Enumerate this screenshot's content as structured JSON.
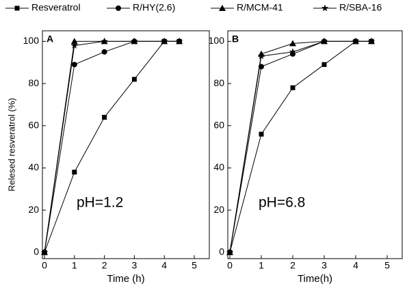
{
  "chart_data": [
    {
      "type": "line",
      "panel_label": "A",
      "annotation": "pH=1.2",
      "y_label": "Relesed resveratrol (%)",
      "x_label": "Time (h)",
      "x": [
        0,
        1,
        2,
        3,
        4,
        4.5
      ],
      "xlim": [
        0,
        5.5
      ],
      "xticks": [
        0,
        1,
        2,
        3,
        4,
        5
      ],
      "ylim": [
        -3,
        105
      ],
      "yticks": [
        0,
        20,
        40,
        60,
        80,
        100
      ],
      "series": [
        {
          "name": "Resveratrol",
          "color": "#000000",
          "marker": "square",
          "values": [
            0,
            38,
            64,
            82,
            100,
            100
          ]
        },
        {
          "name": "R/HY(2.6)",
          "color": "#000000",
          "marker": "circle",
          "values": [
            0,
            89,
            95,
            100,
            100,
            100
          ]
        },
        {
          "name": "R/MCM-41",
          "color": "#000000",
          "marker": "triangle",
          "values": [
            0,
            100,
            100,
            100,
            100,
            100
          ]
        },
        {
          "name": "R/SBA-16",
          "color": "#000000",
          "marker": "star",
          "values": [
            0,
            98,
            100,
            100,
            100,
            100
          ]
        }
      ]
    },
    {
      "type": "line",
      "panel_label": "B",
      "annotation": "pH=6.8",
      "x_label": "Time(h)",
      "x": [
        0,
        1,
        2,
        3,
        4,
        4.5
      ],
      "xlim": [
        0,
        5.5
      ],
      "xticks": [
        0,
        1,
        2,
        3,
        4,
        5
      ],
      "ylim": [
        -3,
        105
      ],
      "yticks": [
        0,
        20,
        40,
        60,
        80,
        100
      ],
      "series": [
        {
          "name": "Resveratrol",
          "color": "#000000",
          "marker": "square",
          "values": [
            0,
            56,
            78,
            89,
            100,
            100
          ]
        },
        {
          "name": "R/HY(2.6)",
          "color": "#000000",
          "marker": "circle",
          "values": [
            0,
            88,
            94,
            100,
            100,
            100
          ]
        },
        {
          "name": "R/MCM-41",
          "color": "#000000",
          "marker": "triangle",
          "values": [
            0,
            94,
            99,
            100,
            100,
            100
          ]
        },
        {
          "name": "R/SBA-16",
          "color": "#000000",
          "marker": "star",
          "values": [
            0,
            93,
            95,
            100,
            100,
            100
          ]
        }
      ]
    }
  ]
}
